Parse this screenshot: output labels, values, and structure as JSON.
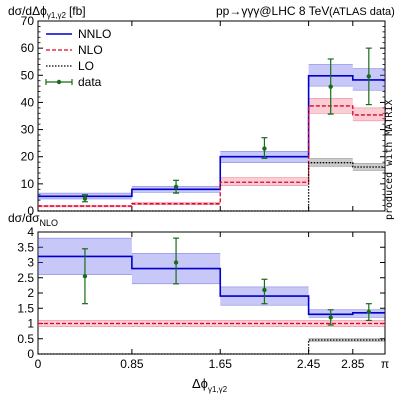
{
  "chart_data": [
    {
      "type": "line",
      "panel": "top",
      "ylabel": "dσ/dΔϕ",
      "ylabel_sub": "γ1,γ2",
      "yunit": "[fb]",
      "process": "pp→γγγ@LHC 8 TeV",
      "dataset": "(ATLAS data)",
      "side_text": "produced with MATRIX",
      "ylim": [
        0,
        70
      ],
      "yticks": [
        0,
        10,
        20,
        30,
        40,
        50,
        60,
        70
      ],
      "legend_position": "top-left",
      "bin_edges": [
        0,
        0.85,
        1.65,
        2.45,
        2.85,
        3.14159
      ],
      "series": [
        {
          "name": "NNLO",
          "color": "#0000cc",
          "values": [
            5.4,
            8.0,
            20.0,
            49.8,
            48.3
          ],
          "band": [
            [
              4.4,
              6.6
            ],
            [
              6.9,
              9.1
            ],
            [
              17.8,
              22.0
            ],
            [
              46.0,
              54.0
            ],
            [
              44.5,
              52.5
            ]
          ]
        },
        {
          "name": "NLO",
          "color": "#e0002a",
          "values": [
            1.8,
            2.7,
            10.6,
            38.7,
            35.4
          ],
          "band": [
            [
              1.5,
              2.1
            ],
            [
              2.3,
              3.1
            ],
            [
              9.3,
              12.3
            ],
            [
              36.0,
              41.5
            ],
            [
              33.2,
              38.0
            ]
          ]
        },
        {
          "name": "LO",
          "color": "#000000",
          "values": [
            0,
            0,
            0,
            17.8,
            16.2
          ],
          "band": [
            [
              0,
              0
            ],
            [
              0,
              0
            ],
            [
              0,
              0
            ],
            [
              16.5,
              19.3
            ],
            [
              15.0,
              17.5
            ]
          ]
        }
      ],
      "data": {
        "name": "data",
        "color": "#1a6b1a",
        "x": [
          0.425,
          1.25,
          2.05,
          2.65,
          2.995
        ],
        "y": [
          4.6,
          8.9,
          23.0,
          45.8,
          49.6
        ],
        "err": [
          [
            3.4,
            6.0
          ],
          [
            6.6,
            11.3
          ],
          [
            19.4,
            27.0
          ],
          [
            35.7,
            56.0
          ],
          [
            39.2,
            60.0
          ]
        ]
      }
    },
    {
      "type": "line",
      "panel": "bottom",
      "ylabel": "dσ/dσ",
      "ylabel_sub": "NLO",
      "xlabel": "Δϕ",
      "xlabel_sub": "γ1,γ2",
      "ylim": [
        0,
        4
      ],
      "yticks": [
        "0",
        "0.5",
        "1",
        "1.5",
        "2",
        "2.5",
        "3",
        "3.5",
        "4"
      ],
      "xticks": [
        "0",
        "0.85",
        "1.65",
        "2.45",
        "2.85",
        "π"
      ],
      "bin_edges": [
        0,
        0.85,
        1.65,
        2.45,
        2.85,
        3.14159
      ],
      "series": [
        {
          "name": "NNLO",
          "color": "#0000cc",
          "values": [
            3.2,
            2.8,
            1.9,
            1.3,
            1.35
          ],
          "band": [
            [
              2.6,
              3.8
            ],
            [
              2.3,
              3.3
            ],
            [
              1.6,
              2.2
            ],
            [
              1.2,
              1.45
            ],
            [
              1.2,
              1.45
            ]
          ]
        },
        {
          "name": "NLO",
          "color": "#e0002a",
          "values": [
            1.0,
            1.0,
            1.0,
            1.0,
            1.0
          ],
          "band": [
            [
              0.9,
              1.1
            ],
            [
              0.9,
              1.1
            ],
            [
              0.9,
              1.1
            ],
            [
              0.9,
              1.1
            ],
            [
              0.9,
              1.1
            ]
          ]
        },
        {
          "name": "LO",
          "color": "#000000",
          "values": [
            0,
            0,
            0,
            0.46,
            0.46
          ],
          "band": [
            [
              0,
              0
            ],
            [
              0,
              0
            ],
            [
              0,
              0
            ],
            [
              0.42,
              0.5
            ],
            [
              0.42,
              0.5
            ]
          ]
        }
      ],
      "data": {
        "name": "data",
        "color": "#1a6b1a",
        "x": [
          0.425,
          1.25,
          2.05,
          2.65,
          2.995
        ],
        "y": [
          2.55,
          3.0,
          2.1,
          1.2,
          1.38
        ],
        "err": [
          [
            1.65,
            3.45
          ],
          [
            2.3,
            3.8
          ],
          [
            1.65,
            2.45
          ],
          [
            0.95,
            1.45
          ],
          [
            1.1,
            1.65
          ]
        ]
      }
    }
  ]
}
